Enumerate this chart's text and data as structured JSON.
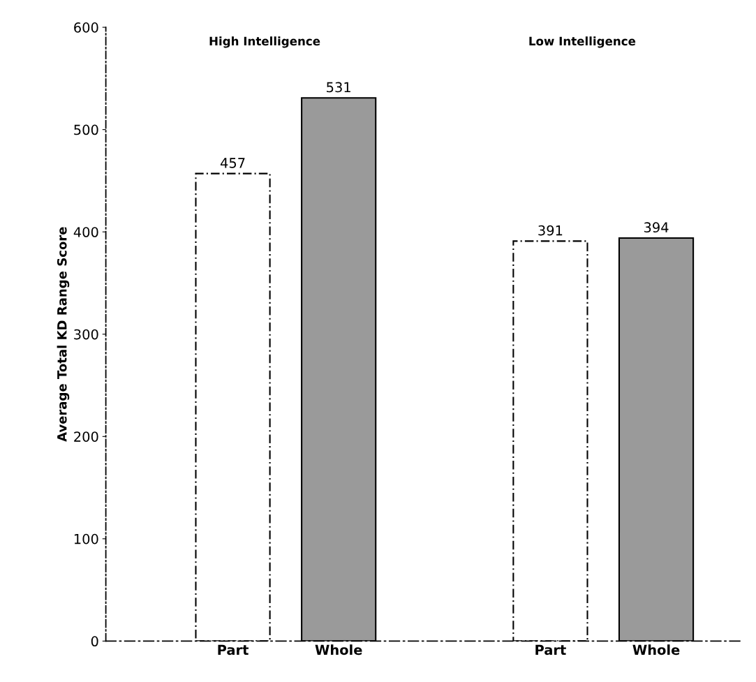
{
  "chart_data": {
    "type": "bar",
    "ylabel": "Average Total KD Range Score",
    "categories": [
      "Part",
      "Whole",
      null,
      "Part",
      "Whole"
    ],
    "values": [
      457,
      531,
      null,
      391,
      394
    ],
    "colors": [
      "#ffffff",
      "#9a9a9a",
      null,
      "#ffffff",
      "#9a9a9a"
    ],
    "data_labels": true,
    "ylim": [
      0,
      600
    ],
    "yticks": [
      0,
      100,
      200,
      300,
      400,
      500,
      600
    ],
    "grid": false,
    "annotations": [
      "High Intelligence",
      "Low Intelligence"
    ]
  }
}
